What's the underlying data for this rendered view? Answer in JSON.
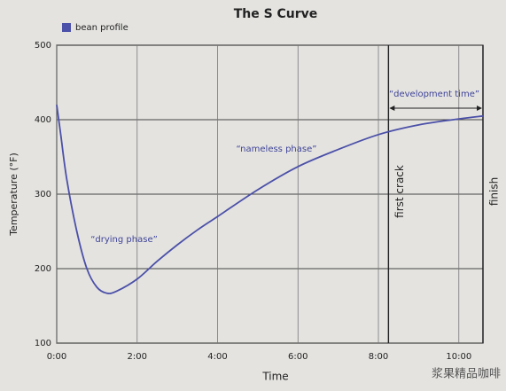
{
  "chart_data": {
    "type": "line",
    "title": "The S Curve",
    "x_label": "Time",
    "y_label": "Temperature (°F)",
    "x": [
      0,
      0.1,
      0.25,
      0.5,
      0.75,
      1.0,
      1.25,
      1.5,
      2.0,
      2.5,
      3.0,
      3.5,
      4.0,
      5.0,
      6.0,
      7.0,
      8.0,
      9.0,
      10.0,
      10.6
    ],
    "series": [
      {
        "name": "bean profile",
        "color": "#4b50a8",
        "values": [
          420,
          380,
          320,
          250,
          200,
          175,
          167,
          170,
          186,
          210,
          232,
          252,
          270,
          306,
          337,
          360,
          380,
          393,
          401,
          405
        ]
      }
    ],
    "xlim": [
      0,
      10.6
    ],
    "xticks": [
      {
        "value": 0,
        "label": "0:00"
      },
      {
        "value": 2,
        "label": "2:00"
      },
      {
        "value": 4,
        "label": "4:00"
      },
      {
        "value": 6,
        "label": "6:00"
      },
      {
        "value": 8,
        "label": "8:00"
      },
      {
        "value": 10,
        "label": "10:00"
      }
    ],
    "ylim": [
      100,
      500
    ],
    "yticks": [
      100,
      200,
      300,
      400,
      500
    ],
    "grid": true,
    "markers": [
      {
        "x": 8.25,
        "label": "first crack"
      },
      {
        "x": 10.6,
        "label": "finish"
      }
    ],
    "annotations": [
      "“drying phase”",
      "“nameless phase”",
      "“development time”"
    ],
    "watermark": "浆果精品咖啡"
  }
}
